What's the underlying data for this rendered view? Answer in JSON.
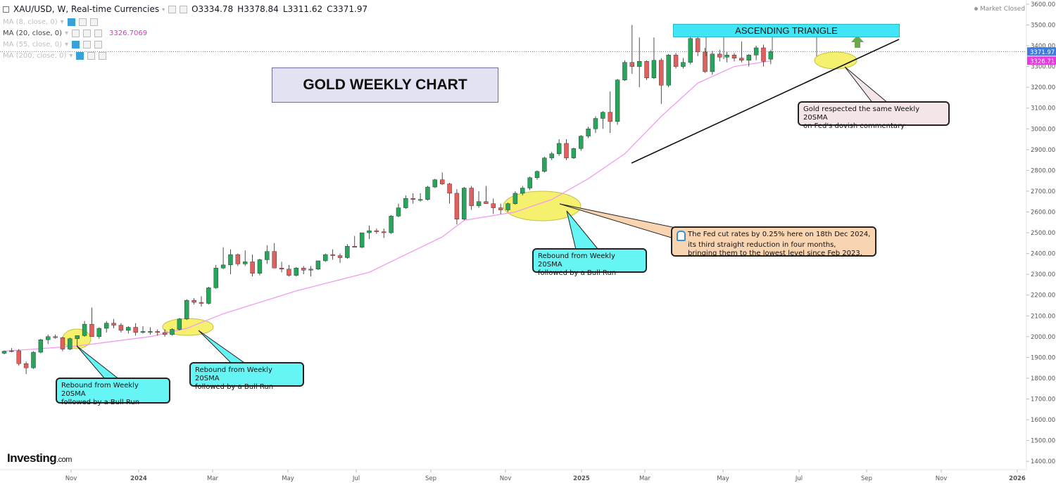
{
  "header": {
    "symbol": "XAU/USD, W, Real-time Currencies",
    "open": "O3334.78",
    "high": "H3378.84",
    "low": "L3311.62",
    "close": "C3371.97",
    "market_status": "Market Closed"
  },
  "indicators": [
    {
      "label": "MA (8, close, 0)",
      "value": ""
    },
    {
      "label": "MA (20, close, 0)",
      "value": "3326.7069"
    },
    {
      "label": "MA (55, close, 0)",
      "value": ""
    },
    {
      "label": "MA (200, close, 0)",
      "value": ""
    }
  ],
  "title_box": "GOLD WEEKLY CHART",
  "pattern_label": "ASCENDING TRIANGLE",
  "callouts": {
    "rebound_1_line1": "Rebound from Weekly 20SMA",
    "rebound_1_line2": "followed by a Bull Run",
    "rebound_2_line1": "Rebound from Weekly 20SMA",
    "rebound_2_line2": "followed by a Bull Run",
    "rebound_3_line1": "Rebound from Weekly 20SMA",
    "rebound_3_line2": "followed by a Bull Run",
    "fed_line1": "The Fed cut rates by 0.25% here on 18th Dec 2024,",
    "fed_line2": "its third straight reduction in four months,",
    "fed_line3": "bringing them to the lowest level since Feb 2023.",
    "sma_line1": "Gold respected the same Weekly 20SMA",
    "sma_line2": "on Fed's dovish commentary"
  },
  "logo": {
    "brand": "Investing",
    "suffix": ".com"
  },
  "colors": {
    "up": "#26a65b",
    "down": "#e0605e",
    "sma20": "#f29bef",
    "price_label_bg": "#3d7be0",
    "sma_label_bg": "#e838e0",
    "highlight": "#f5f06e",
    "arrow": "#6aaa4a"
  },
  "chart_data": {
    "type": "candlestick",
    "title": "GOLD WEEKLY CHART",
    "y_ticks": [
      "1400.00",
      "1500.00",
      "1600.00",
      "1700.00",
      "1800.00",
      "1900.00",
      "2000.00",
      "2100.00",
      "2200.00",
      "2300.00",
      "2400.00",
      "2500.00",
      "2600.00",
      "2700.00",
      "2800.00",
      "2900.00",
      "3000.00",
      "3100.00",
      "3200.00",
      "3300.00",
      "3400.00",
      "3500.00",
      "3600.00"
    ],
    "x_ticks": [
      "Nov",
      "2024",
      "Mar",
      "May",
      "Jul",
      "Sep",
      "Nov",
      "2025",
      "Mar",
      "May",
      "Jul",
      "Sep",
      "Nov",
      "2026"
    ],
    "ylim": [
      1360,
      3620
    ],
    "last_price": "3371.97",
    "sma20_value": "3326.71",
    "series": [
      {
        "name": "XAU/USD",
        "ohlc": [
          [
            1920,
            1934,
            1915,
            1930
          ],
          [
            1930,
            1945,
            1925,
            1932
          ],
          [
            1932,
            1940,
            1860,
            1870
          ],
          [
            1870,
            1880,
            1820,
            1850
          ],
          [
            1850,
            1930,
            1845,
            1925
          ],
          [
            1925,
            1990,
            1920,
            1985
          ],
          [
            1985,
            2010,
            1965,
            2000
          ],
          [
            2000,
            2010,
            1990,
            1995
          ],
          [
            1995,
            2000,
            1930,
            1940
          ],
          [
            1940,
            1995,
            1935,
            1990
          ],
          [
            1990,
            2005,
            1950,
            2005
          ],
          [
            2005,
            2075,
            2000,
            2060
          ],
          [
            2060,
            2140,
            2000,
            2000
          ],
          [
            2000,
            2045,
            1990,
            2040
          ],
          [
            2040,
            2075,
            2020,
            2065
          ],
          [
            2065,
            2085,
            2040,
            2055
          ],
          [
            2055,
            2065,
            2020,
            2030
          ],
          [
            2030,
            2050,
            2015,
            2045
          ],
          [
            2045,
            2065,
            2005,
            2020
          ],
          [
            2020,
            2050,
            2015,
            2025
          ],
          [
            2025,
            2045,
            2010,
            2025
          ],
          [
            2025,
            2035,
            2005,
            2020
          ],
          [
            2020,
            2035,
            2000,
            2010
          ],
          [
            2010,
            2040,
            2005,
            2035
          ],
          [
            2035,
            2090,
            2030,
            2085
          ],
          [
            2085,
            2180,
            2080,
            2175
          ],
          [
            2175,
            2185,
            2155,
            2165
          ],
          [
            2165,
            2195,
            2145,
            2160
          ],
          [
            2160,
            2240,
            2155,
            2235
          ],
          [
            2235,
            2345,
            2230,
            2330
          ],
          [
            2330,
            2430,
            2325,
            2345
          ],
          [
            2345,
            2420,
            2300,
            2395
          ],
          [
            2395,
            2400,
            2340,
            2350
          ],
          [
            2350,
            2415,
            2340,
            2360
          ],
          [
            2360,
            2395,
            2290,
            2305
          ],
          [
            2305,
            2375,
            2295,
            2370
          ],
          [
            2370,
            2440,
            2350,
            2410
          ],
          [
            2410,
            2450,
            2340,
            2330
          ],
          [
            2330,
            2360,
            2310,
            2325
          ],
          [
            2325,
            2345,
            2290,
            2295
          ],
          [
            2295,
            2335,
            2290,
            2330
          ],
          [
            2330,
            2340,
            2300,
            2320
          ],
          [
            2320,
            2340,
            2290,
            2325
          ],
          [
            2325,
            2365,
            2320,
            2365
          ],
          [
            2365,
            2400,
            2360,
            2395
          ],
          [
            2395,
            2420,
            2370,
            2390
          ],
          [
            2390,
            2400,
            2355,
            2380
          ],
          [
            2380,
            2445,
            2375,
            2435
          ],
          [
            2435,
            2485,
            2430,
            2430
          ],
          [
            2430,
            2500,
            2425,
            2500
          ],
          [
            2500,
            2535,
            2470,
            2510
          ],
          [
            2510,
            2520,
            2495,
            2505
          ],
          [
            2505,
            2520,
            2475,
            2500
          ],
          [
            2500,
            2585,
            2495,
            2580
          ],
          [
            2580,
            2640,
            2575,
            2620
          ],
          [
            2620,
            2680,
            2615,
            2665
          ],
          [
            2665,
            2690,
            2640,
            2660
          ],
          [
            2660,
            2690,
            2650,
            2660
          ],
          [
            2660,
            2725,
            2655,
            2720
          ],
          [
            2720,
            2760,
            2715,
            2755
          ],
          [
            2755,
            2790,
            2730,
            2735
          ],
          [
            2735,
            2740,
            2640,
            2690
          ],
          [
            2690,
            2710,
            2540,
            2565
          ],
          [
            2565,
            2720,
            2560,
            2715
          ],
          [
            2715,
            2725,
            2610,
            2630
          ],
          [
            2630,
            2700,
            2620,
            2650
          ],
          [
            2650,
            2725,
            2640,
            2640
          ],
          [
            2640,
            2665,
            2590,
            2620
          ],
          [
            2620,
            2640,
            2590,
            2610
          ],
          [
            2610,
            2645,
            2600,
            2640
          ],
          [
            2640,
            2700,
            2635,
            2690
          ],
          [
            2690,
            2725,
            2680,
            2715
          ],
          [
            2715,
            2770,
            2705,
            2765
          ],
          [
            2765,
            2800,
            2755,
            2795
          ],
          [
            2795,
            2865,
            2790,
            2860
          ],
          [
            2860,
            2890,
            2850,
            2880
          ],
          [
            2880,
            2950,
            2870,
            2930
          ],
          [
            2930,
            2950,
            2850,
            2860
          ],
          [
            2860,
            2910,
            2855,
            2905
          ],
          [
            2905,
            2970,
            2895,
            2965
          ],
          [
            2965,
            3010,
            2955,
            3000
          ],
          [
            3000,
            3060,
            2980,
            3050
          ],
          [
            3050,
            3085,
            3000,
            3080
          ],
          [
            3080,
            3180,
            2980,
            3035
          ],
          [
            3035,
            3240,
            3020,
            3235
          ],
          [
            3235,
            3330,
            3230,
            3320
          ],
          [
            3320,
            3500,
            3265,
            3300
          ],
          [
            3300,
            3440,
            3200,
            3325
          ],
          [
            3325,
            3330,
            3235,
            3245
          ],
          [
            3245,
            3440,
            3240,
            3330
          ],
          [
            3330,
            3340,
            3120,
            3210
          ],
          [
            3210,
            3360,
            3200,
            3355
          ],
          [
            3355,
            3365,
            3290,
            3300
          ],
          [
            3300,
            3340,
            3290,
            3320
          ],
          [
            3320,
            3450,
            3310,
            3435
          ],
          [
            3435,
            3450,
            3350,
            3370
          ],
          [
            3370,
            3390,
            3270,
            3275
          ],
          [
            3275,
            3375,
            3260,
            3360
          ],
          [
            3360,
            3380,
            3325,
            3345
          ],
          [
            3345,
            3370,
            3320,
            3355
          ],
          [
            3355,
            3365,
            3325,
            3340
          ],
          [
            3340,
            3420,
            3320,
            3330
          ],
          [
            3330,
            3360,
            3300,
            3355
          ],
          [
            3355,
            3400,
            3330,
            3390
          ],
          [
            3390,
            3405,
            3300,
            3325
          ],
          [
            3335,
            3380,
            3311,
            3372
          ]
        ]
      },
      {
        "name": "MA (20, close, 0)",
        "points": [
          [
            0,
            1930
          ],
          [
            10,
            1955
          ],
          [
            20,
            2000
          ],
          [
            25,
            2040
          ],
          [
            30,
            2110
          ],
          [
            40,
            2220
          ],
          [
            50,
            2310
          ],
          [
            60,
            2480
          ],
          [
            63,
            2560
          ],
          [
            70,
            2600
          ],
          [
            75,
            2660
          ],
          [
            80,
            2760
          ],
          [
            85,
            2880
          ],
          [
            90,
            3060
          ],
          [
            95,
            3220
          ],
          [
            100,
            3300
          ],
          [
            105,
            3327
          ]
        ]
      }
    ]
  }
}
